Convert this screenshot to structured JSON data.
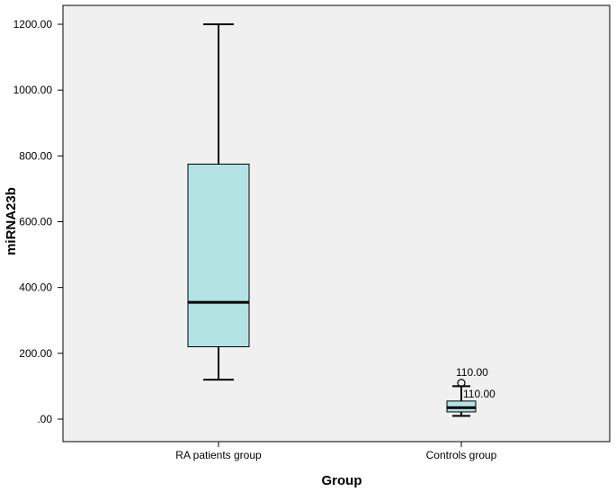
{
  "chart_data": {
    "type": "boxplot",
    "xlabel": "Group",
    "ylabel": "miRNA23b",
    "ylim": [
      0,
      1200
    ],
    "yticks": [
      0,
      200,
      400,
      600,
      800,
      1000,
      1200
    ],
    "ytick_labels": [
      ".00",
      "200.00",
      "400.00",
      "600.00",
      "800.00",
      "1000.00",
      "1200.00"
    ],
    "categories": [
      "RA patients group",
      "Controls group"
    ],
    "boxes": [
      {
        "category": "RA patients group",
        "whisker_low": 120,
        "q1": 220,
        "median": 355,
        "q3": 775,
        "whisker_high": 1200,
        "outliers": []
      },
      {
        "category": "Controls group",
        "whisker_low": 10,
        "q1": 22,
        "median": 35,
        "q3": 55,
        "whisker_high": 100,
        "outliers": [
          110
        ]
      }
    ],
    "annotations": [
      "110.00",
      "110.00"
    ],
    "colors": {
      "box_fill": "#b3e3e3",
      "plot_background": "#f0f0f0"
    }
  }
}
